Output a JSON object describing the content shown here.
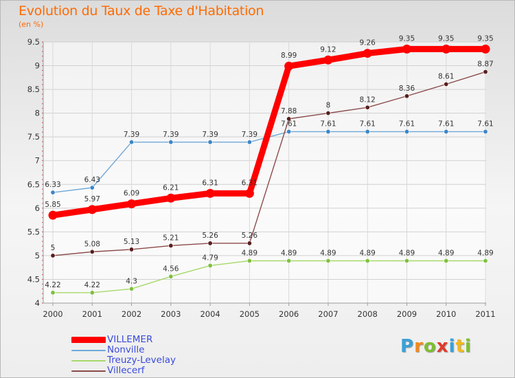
{
  "header": {
    "title": "Evolution du Taux de Taxe d'Habitation",
    "subtitle": "(en %)"
  },
  "logo": {
    "text": "Proxiti"
  },
  "colors": {
    "title": "#ff6a00",
    "legend_text": "#3a4bdc",
    "grid": "#cfcfcf",
    "axis_tick": "#d24a4a"
  },
  "chart_data": {
    "type": "line",
    "title": "Evolution du Taux de Taxe d'Habitation",
    "subtitle": "(en %)",
    "xlabel": "",
    "ylabel": "",
    "x": [
      "2000",
      "2001",
      "2002",
      "2003",
      "2004",
      "2005",
      "2006",
      "2007",
      "2008",
      "2009",
      "2010",
      "2011"
    ],
    "ylim": [
      4,
      9.5
    ],
    "yticks": [
      "4",
      "4.5",
      "5",
      "5.5",
      "6",
      "6.5",
      "7",
      "7.5",
      "8",
      "8.5",
      "9",
      "9.5"
    ],
    "grid": true,
    "legend_placement": "bottom-left",
    "series": [
      {
        "name": "VILLEMER",
        "color": "#ff0000",
        "emphasis": true,
        "values": [
          5.85,
          5.97,
          6.09,
          6.21,
          6.31,
          6.31,
          8.99,
          9.12,
          9.26,
          9.35,
          9.35,
          9.35
        ]
      },
      {
        "name": "Nonville",
        "color": "#6fa8d8",
        "marker": "#3d86c6",
        "values": [
          6.33,
          6.43,
          7.39,
          7.39,
          7.39,
          7.39,
          7.61,
          7.61,
          7.61,
          7.61,
          7.61,
          7.61
        ]
      },
      {
        "name": "Treuzy-Levelay",
        "color": "#a6d96a",
        "marker": "#7fc041",
        "values": [
          4.22,
          4.22,
          4.3,
          4.56,
          4.79,
          4.89,
          4.89,
          4.89,
          4.89,
          4.89,
          4.89,
          4.89
        ]
      },
      {
        "name": "Villecerf",
        "color": "#8b4a4a",
        "marker": "#5a1e1e",
        "values": [
          5,
          5.08,
          5.13,
          5.21,
          5.26,
          5.26,
          7.88,
          8,
          8.12,
          8.36,
          8.61,
          8.87
        ]
      }
    ],
    "data_labels": [
      [
        "5.85",
        "5.97",
        "6.09",
        "6.21",
        "6.31",
        "6.31",
        "8.99",
        "9.12",
        "9.26",
        "9.35",
        "9.35",
        "9.35"
      ],
      [
        "6.33",
        "6.43",
        "7.39",
        "7.39",
        "7.39",
        "7.39",
        "7.61",
        "7.61",
        "7.61",
        "7.61",
        "7.61",
        "7.61"
      ],
      [
        "4.22",
        "4.22",
        "4.3",
        "4.56",
        "4.79",
        "4.89",
        "4.89",
        "4.89",
        "4.89",
        "4.89",
        "4.89",
        "4.89"
      ],
      [
        "5",
        "5.08",
        "5.13",
        "5.21",
        "5.26",
        "5.26",
        "7.88",
        "8",
        "8.12",
        "8.36",
        "8.61",
        "8.87"
      ]
    ]
  }
}
